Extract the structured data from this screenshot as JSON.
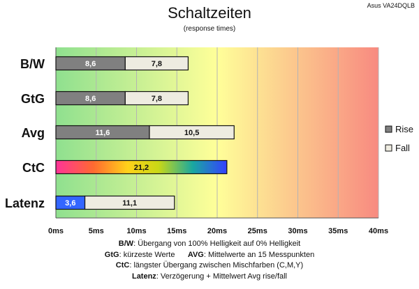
{
  "header": {
    "title": "Schaltzeiten",
    "subtitle": "(response times)",
    "model": "Asus VA24DQLB"
  },
  "chart_data": {
    "type": "bar",
    "orientation": "horizontal",
    "stacked": true,
    "categories": [
      "B/W",
      "GtG",
      "Avg",
      "CtC",
      "Latenz"
    ],
    "series": [
      {
        "name": "Rise",
        "color": "#808080",
        "values": [
          8.6,
          8.6,
          11.6,
          null,
          null
        ]
      },
      {
        "name": "Fall",
        "color": "#eeece1",
        "values": [
          7.8,
          7.8,
          10.5,
          null,
          null
        ]
      }
    ],
    "special_bars": {
      "CtC": {
        "value": 21.2,
        "label": "21,2",
        "fill": "gradient"
      },
      "Latenz": {
        "delay": 3.6,
        "delay_label": "3,6",
        "delay_color": "#3366ff",
        "avg": 11.1,
        "avg_label": "11,1"
      }
    },
    "value_labels": {
      "B/W": [
        "8,6",
        "7,8"
      ],
      "GtG": [
        "8,6",
        "7,8"
      ],
      "Avg": [
        "11,6",
        "10,5"
      ]
    },
    "xlim": [
      0,
      40
    ],
    "xticks": [
      0,
      5,
      10,
      15,
      20,
      25,
      30,
      35,
      40
    ],
    "tick_labels": [
      "0ms",
      "5ms",
      "10ms",
      "15ms",
      "20ms",
      "25ms",
      "30ms",
      "35ms",
      "40ms"
    ],
    "background_gradient": [
      "#8fe08f",
      "#ffff99",
      "#f88a80"
    ],
    "grid": true,
    "legend": {
      "position": "right",
      "entries": [
        "Rise",
        "Fall"
      ]
    }
  },
  "notes": [
    {
      "k1": "B/W",
      "t1": ":  Übergang von 100% Helligkeit auf 0% Helligkeit"
    },
    {
      "k1": "GtG",
      "t1": ": kürzeste  Werte",
      "k2": "AVG",
      "t2": ": Mittelwerte  an 15 Messpunkten"
    },
    {
      "k1": "CtC",
      "t1": ": längster Übergang  zwischen Mischfarben (C,M,Y)"
    },
    {
      "k1": "Latenz",
      "t1": ": Verzögerung  + Mittelwert  Avg rise/fall"
    }
  ]
}
